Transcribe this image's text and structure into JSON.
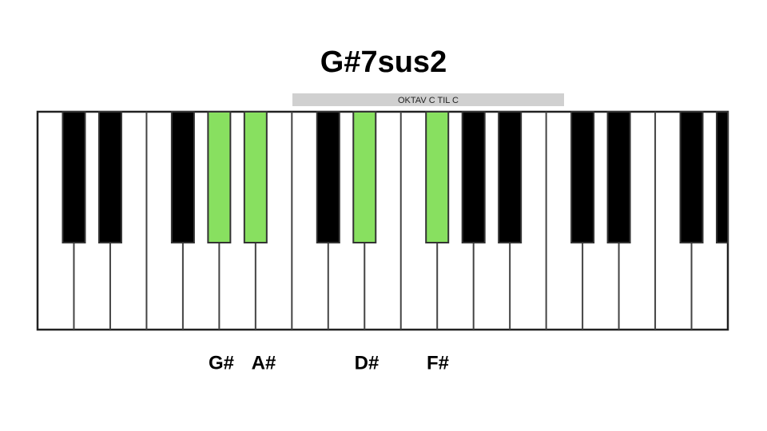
{
  "title": "G#7sus2",
  "octave_label": "OKTAV C TIL C",
  "note_labels": [
    "G#",
    "A#",
    "D#",
    "F#"
  ]
}
